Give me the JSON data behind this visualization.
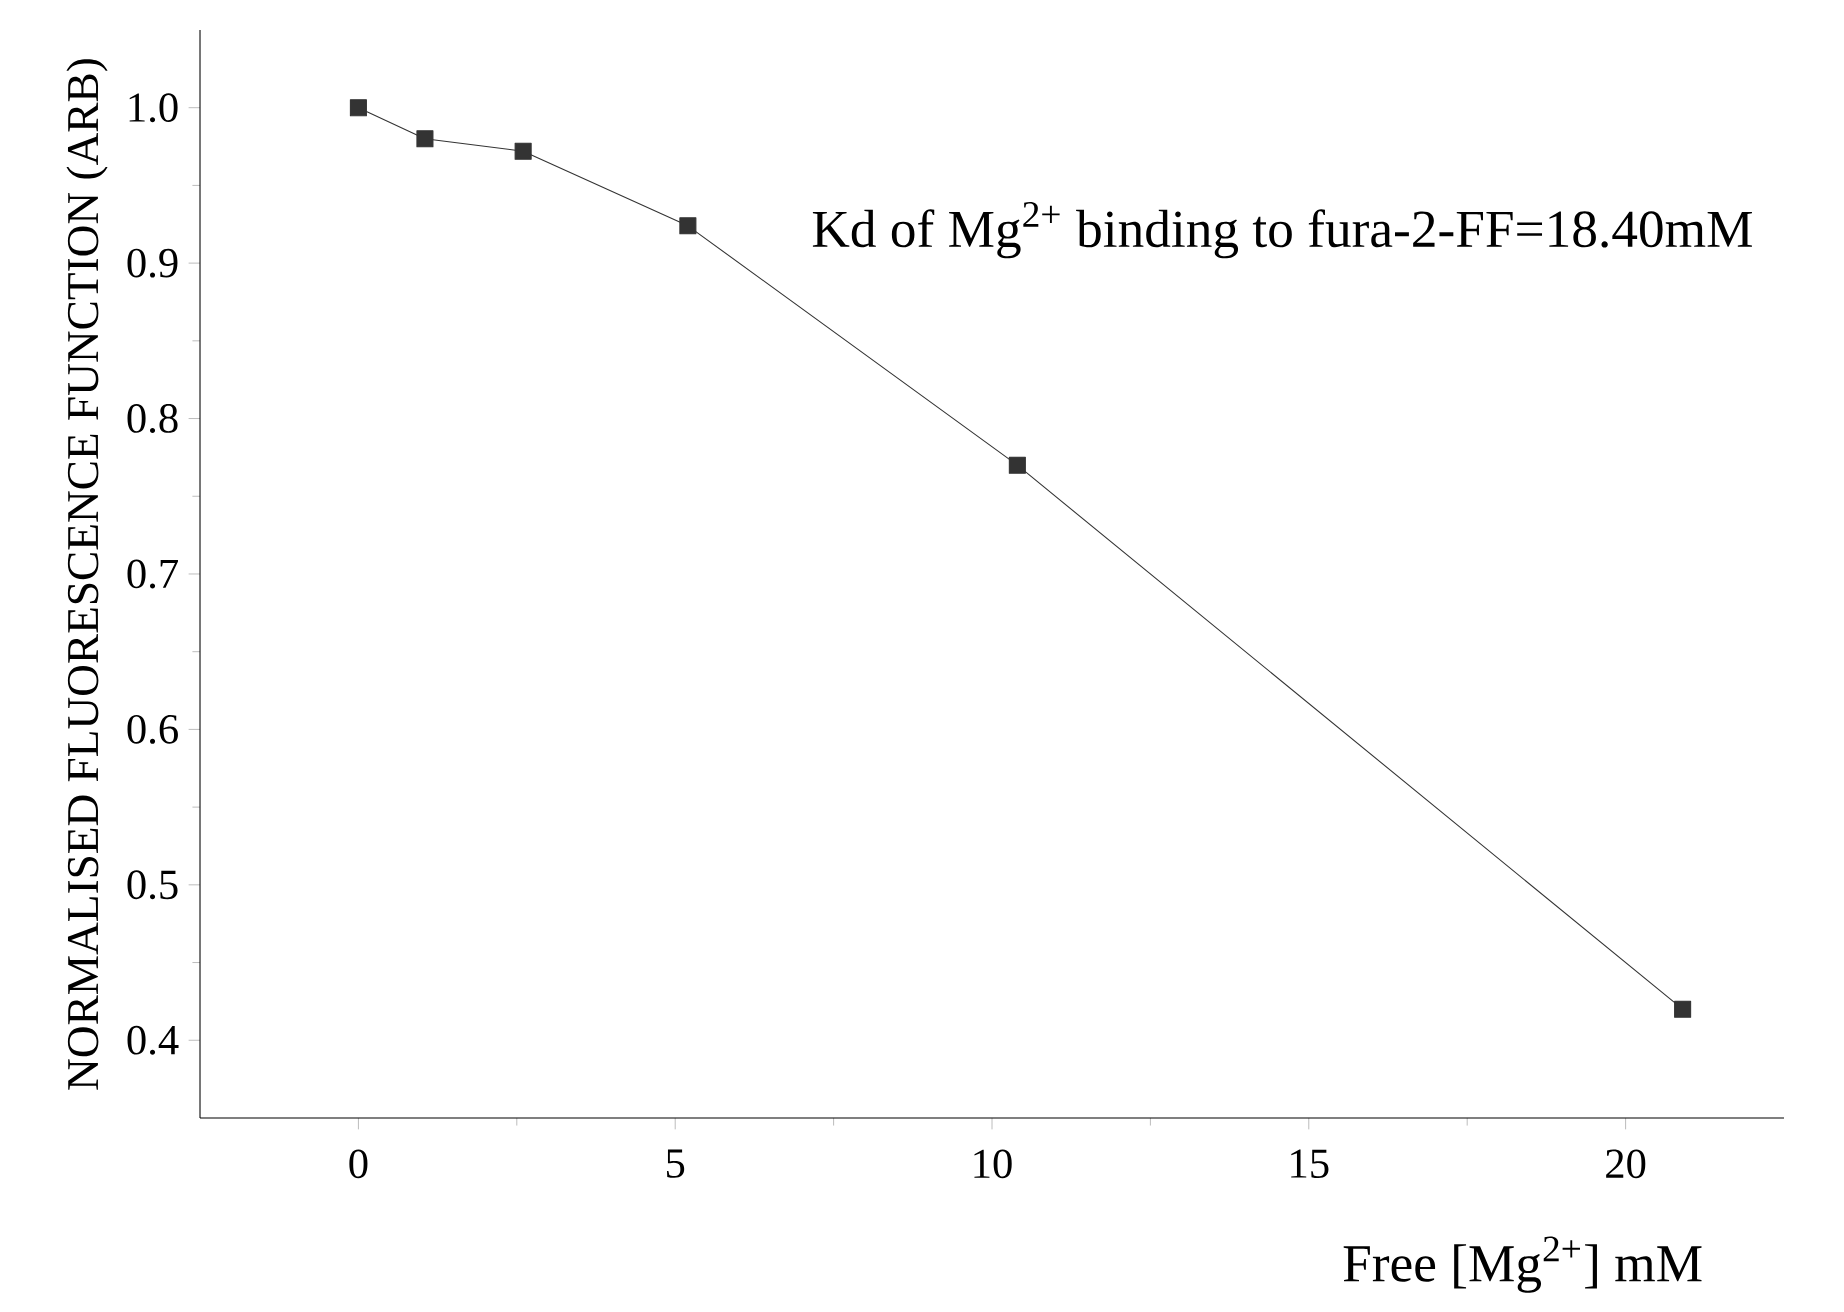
{
  "chart_data": {
    "type": "line",
    "xlabel": "Free [Mg$^{2+}$] mM",
    "ylabel": "NORMALISED FLUORESCENCE FUNCTION (ARB)",
    "annotations": [
      "Kd of Mg$^{2+}$ binding to fura-2-FF=18.40mM"
    ],
    "x": [
      0,
      1.05,
      2.6,
      5.2,
      10.4,
      20.9
    ],
    "values": [
      1.0,
      0.98,
      0.972,
      0.924,
      0.77,
      0.42
    ],
    "color": "#333333",
    "marker": "square",
    "xlim": [
      -2.5,
      22.5
    ],
    "ylim": [
      0.35,
      1.05
    ],
    "xticks": [
      0,
      5,
      10,
      15,
      20
    ],
    "yticks": [
      0.4,
      0.5,
      0.6,
      0.7,
      0.8,
      0.9,
      {
        "value": 1.0,
        "label": "1.0"
      }
    ],
    "grid": false
  }
}
